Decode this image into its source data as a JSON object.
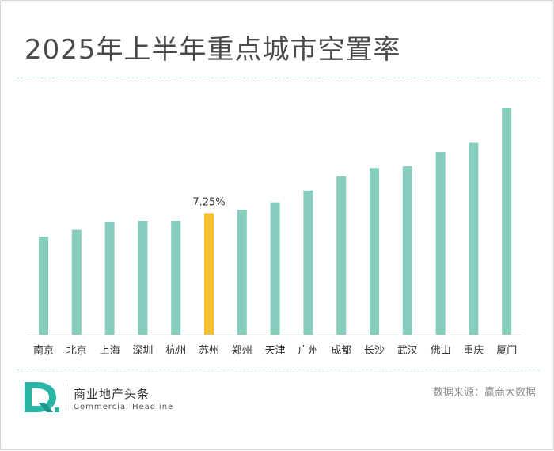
{
  "title": "2025年上半年重点城市空置率",
  "chart_data": {
    "type": "bar",
    "title": "2025年上半年重点城市空置率",
    "categories": [
      "南京",
      "北京",
      "上海",
      "深圳",
      "杭州",
      "苏州",
      "郑州",
      "天津",
      "广州",
      "成都",
      "长沙",
      "武汉",
      "佛山",
      "重庆",
      "厦门"
    ],
    "values": [
      5.85,
      6.25,
      6.75,
      6.8,
      6.8,
      7.25,
      7.45,
      7.9,
      8.6,
      9.45,
      9.95,
      10.05,
      10.9,
      11.45,
      13.55
    ],
    "unit": "%",
    "ylim": [
      0,
      13.55
    ],
    "grid": false,
    "legend": "none",
    "highlight_index": 5,
    "highlight_label": "7.25%",
    "colors": {
      "bar": "#86cdbe",
      "highlight": "#f5be2b",
      "axis": "#d0d0d0"
    }
  },
  "footer": {
    "brand_cn": "商业地产头条",
    "brand_en": "Commercial Headline",
    "source": "数据来源：赢商大数据",
    "logo_icon": "commercial-headline-logo",
    "logo_color": "#2bb5a5"
  }
}
